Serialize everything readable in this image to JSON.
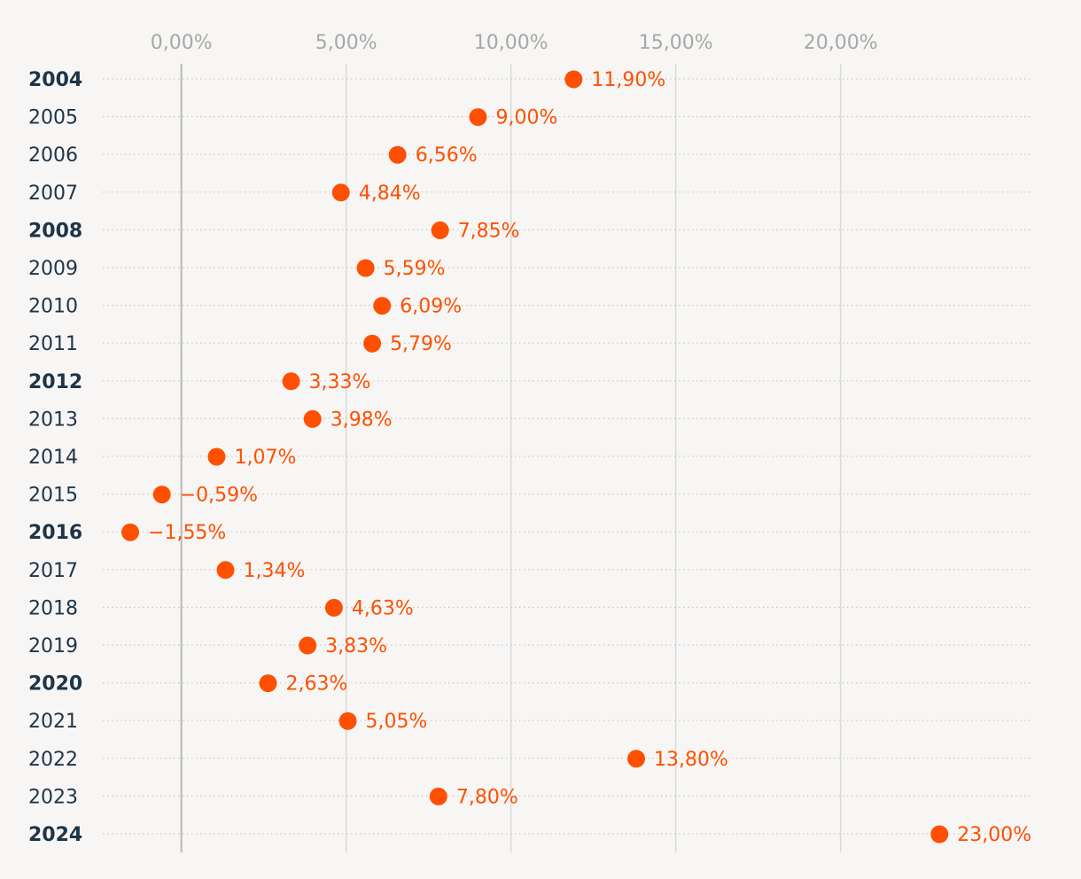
{
  "chart_data": {
    "type": "scatter",
    "orientation": "horizontal-dot",
    "title": "",
    "xlabel": "",
    "ylabel": "",
    "xlim": [
      -1.9,
      25.6
    ],
    "x_ticks": [
      0,
      5,
      10,
      15,
      20
    ],
    "x_tick_labels": [
      "0,00%",
      "5,00%",
      "10,00%",
      "15,00%",
      "20,00%"
    ],
    "categories": [
      "2004",
      "2005",
      "2006",
      "2007",
      "2008",
      "2009",
      "2010",
      "2011",
      "2012",
      "2013",
      "2014",
      "2015",
      "2016",
      "2017",
      "2018",
      "2019",
      "2020",
      "2021",
      "2022",
      "2023",
      "2024"
    ],
    "bold_categories": [
      "2004",
      "2008",
      "2012",
      "2016",
      "2020",
      "2024"
    ],
    "values": [
      11.9,
      9.0,
      6.56,
      4.84,
      7.85,
      5.59,
      6.09,
      5.79,
      3.33,
      3.98,
      1.07,
      -0.59,
      -1.55,
      1.34,
      4.63,
      3.83,
      2.63,
      5.05,
      13.8,
      7.8,
      23.0
    ],
    "value_labels": [
      "11,90%",
      "9,00%",
      "6,56%",
      "4,84%",
      "7,85%",
      "5,59%",
      "6,09%",
      "5,79%",
      "3,33%",
      "3,98%",
      "1,07%",
      "−0,59%",
      "−1,55%",
      "1,34%",
      "4,63%",
      "3,83%",
      "2,63%",
      "5,05%",
      "13,80%",
      "7,80%",
      "23,00%"
    ],
    "grid": true,
    "legend": "none"
  },
  "colors": {
    "background": "#f7f6f4",
    "dot": "#fe5000",
    "label": "#fe5000",
    "year_text": "#1f3447",
    "tick_text": "#a7a7a7"
  }
}
